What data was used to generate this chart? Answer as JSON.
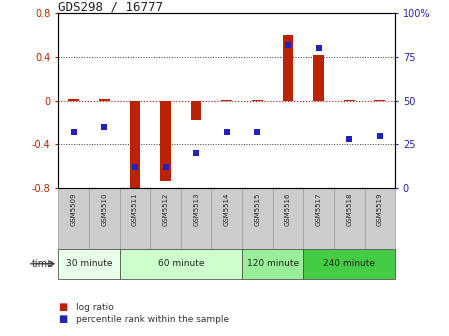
{
  "title": "GDS298 / 16777",
  "samples": [
    "GSM5509",
    "GSM5510",
    "GSM5511",
    "GSM5512",
    "GSM5513",
    "GSM5514",
    "GSM5515",
    "GSM5516",
    "GSM5517",
    "GSM5518",
    "GSM5519"
  ],
  "log_ratios": [
    0.02,
    0.02,
    -0.8,
    -0.73,
    -0.18,
    0.01,
    0.01,
    0.6,
    0.42,
    0.01,
    0.01
  ],
  "percentile_ranks": [
    32,
    35,
    12,
    12,
    20,
    32,
    32,
    82,
    80,
    28,
    30
  ],
  "ylim_left": [
    -0.8,
    0.8
  ],
  "ylim_right": [
    0,
    100
  ],
  "yticks_left": [
    -0.8,
    -0.4,
    0.0,
    0.4,
    0.8
  ],
  "yticks_right": [
    0,
    25,
    50,
    75,
    100
  ],
  "ytick_labels_right": [
    "0",
    "25",
    "50",
    "75",
    "100%"
  ],
  "bar_color": "#bb2200",
  "dot_color": "#2222bb",
  "zero_line_color": "#cc1111",
  "grid_color": "#333333",
  "time_groups": [
    {
      "label": "30 minute",
      "start": 0,
      "end": 1,
      "color": "#e8ffe8"
    },
    {
      "label": "60 minute",
      "start": 2,
      "end": 5,
      "color": "#ccffcc"
    },
    {
      "label": "120 minute",
      "start": 6,
      "end": 7,
      "color": "#99ee99"
    },
    {
      "label": "240 minute",
      "start": 8,
      "end": 10,
      "color": "#44cc44"
    }
  ],
  "xlabel_time": "time",
  "legend_log": "log ratio",
  "legend_pct": "percentile rank within the sample",
  "bg_color": "#ffffff",
  "sample_cell_color": "#cccccc"
}
